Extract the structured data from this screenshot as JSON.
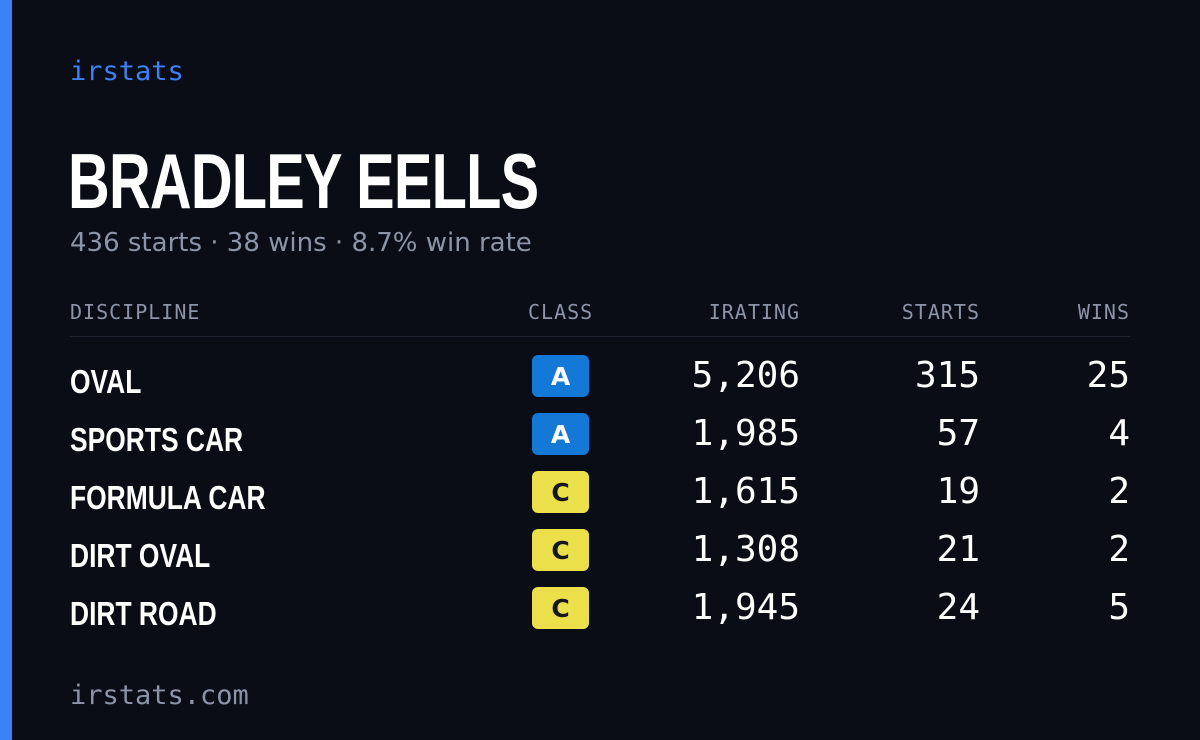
{
  "brand": "irstats",
  "driver": {
    "name": "BRADLEY EELLS",
    "summary": "436 starts · 38 wins · 8.7% win rate"
  },
  "table": {
    "headers": {
      "discipline": "DISCIPLINE",
      "class": "CLASS",
      "irating": "IRATING",
      "starts": "STARTS",
      "wins": "WINS"
    },
    "rows": [
      {
        "discipline": "OVAL",
        "class": "A",
        "irating": "5,206",
        "starts": "315",
        "wins": "25"
      },
      {
        "discipline": "SPORTS CAR",
        "class": "A",
        "irating": "1,985",
        "starts": "57",
        "wins": "4"
      },
      {
        "discipline": "FORMULA CAR",
        "class": "C",
        "irating": "1,615",
        "starts": "19",
        "wins": "2"
      },
      {
        "discipline": "DIRT OVAL",
        "class": "C",
        "irating": "1,308",
        "starts": "21",
        "wins": "2"
      },
      {
        "discipline": "DIRT ROAD",
        "class": "C",
        "irating": "1,945",
        "starts": "24",
        "wins": "5"
      }
    ]
  },
  "footer": {
    "url": "irstats.com"
  },
  "colors": {
    "accent": "#3b82f6",
    "background": "#0a0d15",
    "class_a": "#1479d6",
    "class_c": "#ebe04a"
  }
}
